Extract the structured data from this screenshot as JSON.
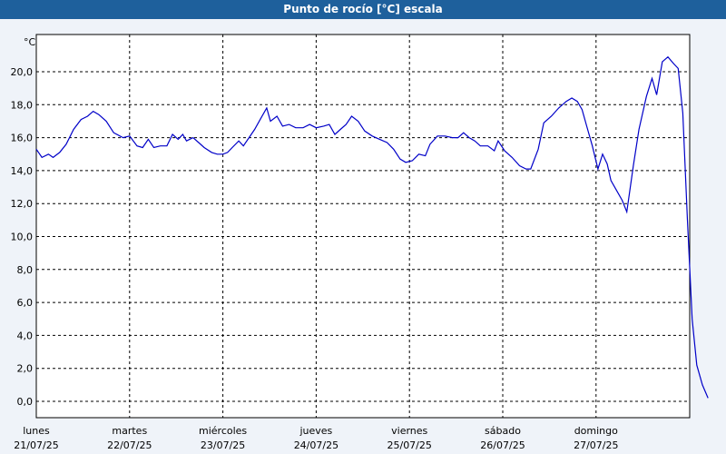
{
  "header": {
    "title": "Punto de rocío [°C] escala"
  },
  "chart_data": {
    "type": "line",
    "title": "Punto de rocío [°C] escala",
    "ylabel": "°C",
    "xlabel": "",
    "ylim": [
      0,
      22
    ],
    "yticks": [
      0,
      2,
      4,
      6,
      8,
      10,
      12,
      14,
      16,
      18,
      20
    ],
    "ytick_labels": [
      "0,0",
      "2,0",
      "4,0",
      "6,0",
      "8,0",
      "10,0",
      "12,0",
      "14,0",
      "16,0",
      "18,0",
      "20,0"
    ],
    "grid": true,
    "line_color": "#0000c8",
    "day_labels": [
      {
        "weekday": "lunes",
        "date": "21/07/25"
      },
      {
        "weekday": "martes",
        "date": "22/07/25"
      },
      {
        "weekday": "miércoles",
        "date": "23/07/25"
      },
      {
        "weekday": "jueves",
        "date": "24/07/25"
      },
      {
        "weekday": "viernes",
        "date": "25/07/25"
      },
      {
        "weekday": "sábado",
        "date": "26/07/25"
      },
      {
        "weekday": "domingo",
        "date": "27/07/25"
      }
    ],
    "series": [
      {
        "values": [
          [
            0.0,
            15.3
          ],
          [
            0.06,
            14.8
          ],
          [
            0.13,
            15.0
          ],
          [
            0.18,
            14.8
          ],
          [
            0.25,
            15.1
          ],
          [
            0.32,
            15.6
          ],
          [
            0.4,
            16.5
          ],
          [
            0.48,
            17.1
          ],
          [
            0.55,
            17.3
          ],
          [
            0.61,
            17.6
          ],
          [
            0.67,
            17.4
          ],
          [
            0.75,
            17.0
          ],
          [
            0.83,
            16.3
          ],
          [
            0.93,
            16.0
          ],
          [
            1.0,
            16.1
          ],
          [
            1.08,
            15.5
          ],
          [
            1.14,
            15.4
          ],
          [
            1.2,
            15.9
          ],
          [
            1.26,
            15.4
          ],
          [
            1.33,
            15.5
          ],
          [
            1.4,
            15.5
          ],
          [
            1.46,
            16.2
          ],
          [
            1.52,
            15.9
          ],
          [
            1.57,
            16.2
          ],
          [
            1.61,
            15.8
          ],
          [
            1.68,
            16.0
          ],
          [
            1.74,
            15.7
          ],
          [
            1.8,
            15.4
          ],
          [
            1.88,
            15.1
          ],
          [
            1.94,
            15.0
          ],
          [
            2.0,
            15.0
          ],
          [
            2.05,
            15.1
          ],
          [
            2.1,
            15.4
          ],
          [
            2.17,
            15.8
          ],
          [
            2.22,
            15.5
          ],
          [
            2.28,
            16.0
          ],
          [
            2.34,
            16.5
          ],
          [
            2.41,
            17.2
          ],
          [
            2.47,
            17.8
          ],
          [
            2.51,
            17.0
          ],
          [
            2.58,
            17.3
          ],
          [
            2.64,
            16.7
          ],
          [
            2.71,
            16.8
          ],
          [
            2.78,
            16.6
          ],
          [
            2.86,
            16.6
          ],
          [
            2.93,
            16.8
          ],
          [
            3.0,
            16.6
          ],
          [
            3.08,
            16.7
          ],
          [
            3.14,
            16.8
          ],
          [
            3.2,
            16.2
          ],
          [
            3.26,
            16.5
          ],
          [
            3.32,
            16.8
          ],
          [
            3.38,
            17.3
          ],
          [
            3.45,
            17.0
          ],
          [
            3.52,
            16.4
          ],
          [
            3.6,
            16.1
          ],
          [
            3.68,
            15.9
          ],
          [
            3.76,
            15.7
          ],
          [
            3.83,
            15.3
          ],
          [
            3.9,
            14.7
          ],
          [
            3.96,
            14.5
          ],
          [
            4.03,
            14.6
          ],
          [
            4.1,
            15.0
          ],
          [
            4.17,
            14.9
          ],
          [
            4.22,
            15.6
          ],
          [
            4.3,
            16.1
          ],
          [
            4.38,
            16.1
          ],
          [
            4.46,
            16.0
          ],
          [
            4.52,
            16.0
          ],
          [
            4.58,
            16.3
          ],
          [
            4.64,
            16.0
          ],
          [
            4.7,
            15.8
          ],
          [
            4.76,
            15.5
          ],
          [
            4.84,
            15.5
          ],
          [
            4.91,
            15.2
          ],
          [
            4.95,
            15.8
          ],
          [
            5.02,
            15.2
          ],
          [
            5.1,
            14.8
          ],
          [
            5.18,
            14.3
          ],
          [
            5.25,
            14.1
          ],
          [
            5.3,
            14.1
          ],
          [
            5.38,
            15.3
          ],
          [
            5.44,
            16.9
          ],
          [
            5.52,
            17.3
          ],
          [
            5.6,
            17.8
          ],
          [
            5.68,
            18.2
          ],
          [
            5.74,
            18.4
          ],
          [
            5.8,
            18.2
          ],
          [
            5.85,
            17.7
          ],
          [
            5.9,
            16.7
          ],
          [
            5.96,
            15.5
          ],
          [
            6.02,
            14.1
          ],
          [
            6.07,
            15.0
          ],
          [
            6.12,
            14.4
          ],
          [
            6.16,
            13.4
          ],
          [
            6.22,
            12.8
          ],
          [
            6.28,
            12.2
          ],
          [
            6.33,
            11.5
          ],
          [
            6.4,
            14.3
          ],
          [
            6.46,
            16.5
          ],
          [
            6.54,
            18.5
          ],
          [
            6.6,
            19.6
          ],
          [
            6.65,
            18.6
          ],
          [
            6.71,
            20.6
          ],
          [
            6.77,
            20.9
          ],
          [
            6.83,
            20.5
          ],
          [
            6.88,
            20.2
          ],
          [
            6.93,
            17.5
          ],
          [
            6.98,
            11.0
          ],
          [
            7.03,
            5.0
          ],
          [
            7.08,
            2.2
          ],
          [
            7.14,
            1.0
          ],
          [
            7.2,
            0.2
          ]
        ]
      }
    ]
  }
}
